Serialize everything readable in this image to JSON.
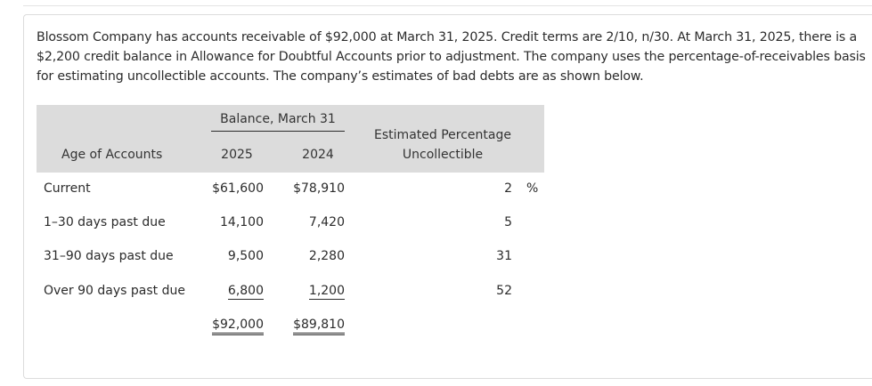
{
  "problem": {
    "text": "Blossom Company has accounts receivable of $92,000 at March 31, 2025. Credit terms are 2/10, n/30. At March 31, 2025, there is a $2,200 credit balance in Allowance for Doubtful Accounts prior to adjustment. The company uses the percentage-of-receivables basis for estimating uncollectible accounts. The company’s estimates of bad debts are as shown below."
  },
  "table": {
    "group_header": "Balance, March 31",
    "col_age": "Age of Accounts",
    "col_2025": "2025",
    "col_2024": "2024",
    "col_pct_line1": "Estimated Percentage",
    "col_pct_line2": "Uncollectible",
    "rows": [
      {
        "age": "Current",
        "v2025": "$61,600",
        "v2024": "$78,910",
        "pct": "2",
        "pct_unit": "%"
      },
      {
        "age": "1–30 days past due",
        "v2025": "14,100",
        "v2024": "7,420",
        "pct": "5"
      },
      {
        "age": "31–90 days past due",
        "v2025": "9,500",
        "v2024": "2,280",
        "pct": "31"
      },
      {
        "age": "Over 90 days past due",
        "v2025": "6,800",
        "v2024": "1,200",
        "pct": "52"
      }
    ],
    "totals": {
      "v2025": "$92,000",
      "v2024": "$89,810"
    }
  }
}
